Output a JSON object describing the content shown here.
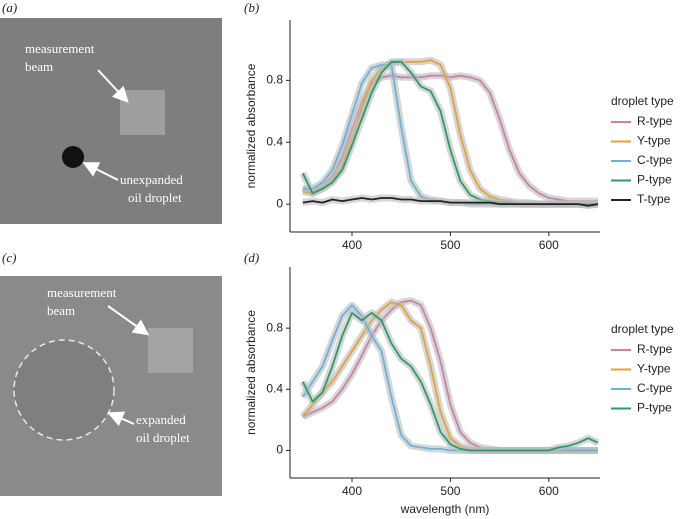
{
  "images": [
    {
      "label": "(a)",
      "annotations": [
        {
          "lines": [
            "measurement",
            "beam"
          ]
        },
        {
          "lines": [
            "unexpanded",
            "oil droplet"
          ]
        }
      ]
    },
    {
      "label": "(c)",
      "annotations": [
        {
          "lines": [
            "measurement",
            "beam"
          ]
        },
        {
          "lines": [
            "expanded",
            "oil droplet"
          ]
        }
      ]
    }
  ],
  "chart_data": [
    {
      "type": "line",
      "label": "(b)",
      "ylabel": "normalized absorbance",
      "legend_title": "droplet type",
      "x": [
        350,
        360,
        370,
        380,
        390,
        400,
        410,
        420,
        430,
        440,
        450,
        460,
        470,
        480,
        490,
        500,
        510,
        520,
        530,
        540,
        550,
        560,
        570,
        580,
        590,
        600,
        610,
        620,
        630,
        640,
        650
      ],
      "xlim": [
        337,
        652
      ],
      "xticks": [
        400,
        500,
        600
      ],
      "ylim": [
        -0.18,
        1.19
      ],
      "yticks": [
        0,
        0.4,
        0.8
      ],
      "series": [
        {
          "name": "R-type",
          "color": "#c983aa",
          "values": [
            0.1,
            0.08,
            0.12,
            0.18,
            0.3,
            0.48,
            0.66,
            0.78,
            0.82,
            0.83,
            0.82,
            0.82,
            0.82,
            0.83,
            0.83,
            0.82,
            0.83,
            0.82,
            0.8,
            0.72,
            0.55,
            0.35,
            0.2,
            0.12,
            0.07,
            0.04,
            0.03,
            0.02,
            0.02,
            0.02,
            0.02
          ]
        },
        {
          "name": "Y-type",
          "color": "#e2a33a",
          "values": [
            0.08,
            0.07,
            0.1,
            0.15,
            0.25,
            0.42,
            0.62,
            0.8,
            0.88,
            0.91,
            0.92,
            0.92,
            0.92,
            0.93,
            0.9,
            0.75,
            0.45,
            0.22,
            0.1,
            0.05,
            0.03,
            0.02,
            0.01,
            0.01,
            0,
            0,
            0,
            0,
            0,
            0,
            0
          ]
        },
        {
          "name": "C-type",
          "color": "#6cb3da",
          "values": [
            0.1,
            0.1,
            0.14,
            0.22,
            0.38,
            0.58,
            0.78,
            0.88,
            0.9,
            0.9,
            0.5,
            0.15,
            0.05,
            0.03,
            0.02,
            0.01,
            0.01,
            0,
            0,
            0,
            0,
            0,
            0,
            0,
            0,
            0,
            0,
            0,
            0,
            0,
            0
          ]
        },
        {
          "name": "P-type",
          "color": "#2b9a6c",
          "values": [
            0.2,
            0.07,
            0.1,
            0.14,
            0.22,
            0.38,
            0.55,
            0.72,
            0.85,
            0.92,
            0.92,
            0.85,
            0.76,
            0.73,
            0.6,
            0.35,
            0.15,
            0.06,
            0.03,
            0.02,
            0.01,
            0.01,
            0,
            0,
            0,
            0,
            0,
            0,
            0,
            0,
            0
          ]
        },
        {
          "name": "T-type",
          "color": "#222222",
          "values": [
            0.01,
            0.02,
            0.01,
            0.03,
            0.02,
            0.03,
            0.04,
            0.03,
            0.04,
            0.04,
            0.03,
            0.03,
            0.02,
            0.02,
            0.02,
            0.01,
            0.01,
            0.01,
            0.01,
            0.01,
            0,
            0,
            0,
            0,
            0,
            0,
            0,
            0,
            0,
            -0.01,
            0
          ]
        }
      ]
    },
    {
      "type": "line",
      "label": "(d)",
      "ylabel": "normalized absorbance",
      "xlabel": "wavelength (nm)",
      "legend_title": "droplet type",
      "x": [
        350,
        360,
        370,
        380,
        390,
        400,
        410,
        420,
        430,
        440,
        450,
        460,
        470,
        480,
        490,
        500,
        510,
        520,
        530,
        540,
        550,
        560,
        570,
        580,
        590,
        600,
        610,
        620,
        630,
        640,
        650
      ],
      "xlim": [
        337,
        652
      ],
      "xticks": [
        400,
        500,
        600
      ],
      "ylim": [
        -0.18,
        1.2
      ],
      "yticks": [
        0,
        0.4,
        0.8
      ],
      "series": [
        {
          "name": "R-type",
          "color": "#c983aa",
          "values": [
            0.22,
            0.25,
            0.28,
            0.32,
            0.4,
            0.5,
            0.62,
            0.75,
            0.85,
            0.92,
            0.97,
            0.98,
            0.95,
            0.8,
            0.58,
            0.3,
            0.12,
            0.05,
            0.02,
            0.01,
            0,
            0,
            0,
            0,
            0,
            0,
            0,
            0,
            0,
            0,
            0
          ]
        },
        {
          "name": "Y-type",
          "color": "#e2a33a",
          "values": [
            0.22,
            0.3,
            0.38,
            0.45,
            0.55,
            0.65,
            0.75,
            0.85,
            0.92,
            0.97,
            0.95,
            0.85,
            0.8,
            0.55,
            0.25,
            0.08,
            0.03,
            0.01,
            0,
            0,
            0,
            0,
            0,
            0,
            0,
            0,
            0,
            0,
            0,
            0,
            0
          ]
        },
        {
          "name": "C-type",
          "color": "#6cb3da",
          "values": [
            0.35,
            0.45,
            0.55,
            0.72,
            0.88,
            0.95,
            0.88,
            0.75,
            0.65,
            0.35,
            0.1,
            0.03,
            0.02,
            0.01,
            0.01,
            0,
            0,
            0,
            0,
            0,
            0,
            0,
            0,
            0,
            0,
            0,
            0,
            0,
            0,
            0,
            0
          ]
        },
        {
          "name": "P-type",
          "color": "#2b9a6c",
          "values": [
            0.45,
            0.32,
            0.38,
            0.55,
            0.75,
            0.9,
            0.85,
            0.9,
            0.85,
            0.7,
            0.6,
            0.55,
            0.45,
            0.3,
            0.12,
            0.04,
            0.01,
            0,
            0,
            0,
            0,
            0,
            0,
            0,
            0,
            0,
            0.02,
            0.03,
            0.05,
            0.08,
            0.05
          ]
        }
      ]
    }
  ]
}
